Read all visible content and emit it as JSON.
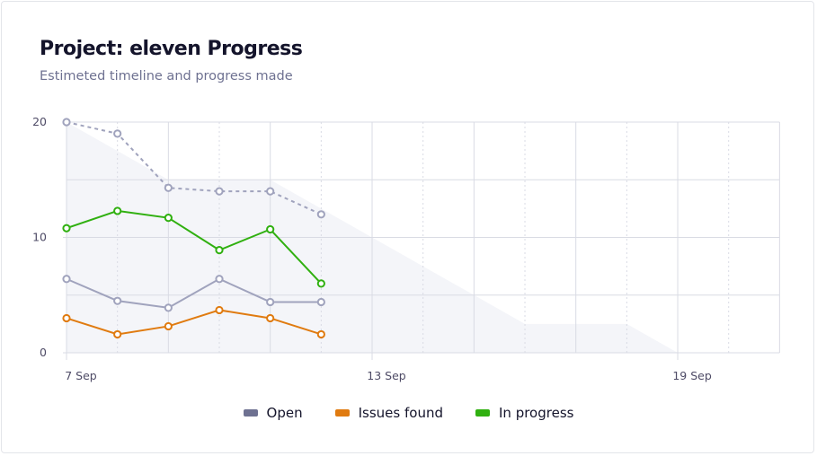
{
  "header": {
    "title": "Project: eleven Progress",
    "subtitle": "Estimeted timeline and progress made"
  },
  "chart_data": {
    "type": "line",
    "x": [
      "7 Sep",
      "8 Sep",
      "9 Sep",
      "10 Sep",
      "11 Sep",
      "12 Sep"
    ],
    "xlim": [
      "7 Sep",
      "21 Sep"
    ],
    "x_tick_labels": [
      "7 Sep",
      "13 Sep",
      "19 Sep"
    ],
    "ylim": [
      0,
      20
    ],
    "y_tick_labels": [
      "0",
      "10",
      "20"
    ],
    "grid": true,
    "legend_position": "bottom",
    "estimate_area": {
      "x": [
        "7 Sep",
        "9 Sep",
        "11 Sep",
        "16 Sep",
        "18 Sep",
        "19 Sep"
      ],
      "values": [
        20,
        15,
        15,
        2.5,
        2.5,
        0
      ],
      "color": "#f4f5f9"
    },
    "estimate_line": {
      "values": [
        20,
        19,
        14.3,
        14,
        14,
        12
      ],
      "color": "#a0a3bd",
      "dashed": true
    },
    "series": [
      {
        "name": "Open",
        "values": [
          6.4,
          4.5,
          3.9,
          6.4,
          4.4,
          4.4
        ],
        "color": "#a0a3bd",
        "legend_color": "#6e7191"
      },
      {
        "name": "Issues found",
        "values": [
          3.0,
          1.6,
          2.3,
          3.7,
          3.0,
          1.6
        ],
        "color": "#e07b10",
        "legend_color": "#e07b10"
      },
      {
        "name": "In progress",
        "values": [
          10.8,
          12.3,
          11.7,
          8.9,
          10.7,
          6.0
        ],
        "color": "#30b010",
        "legend_color": "#30b010"
      }
    ]
  }
}
